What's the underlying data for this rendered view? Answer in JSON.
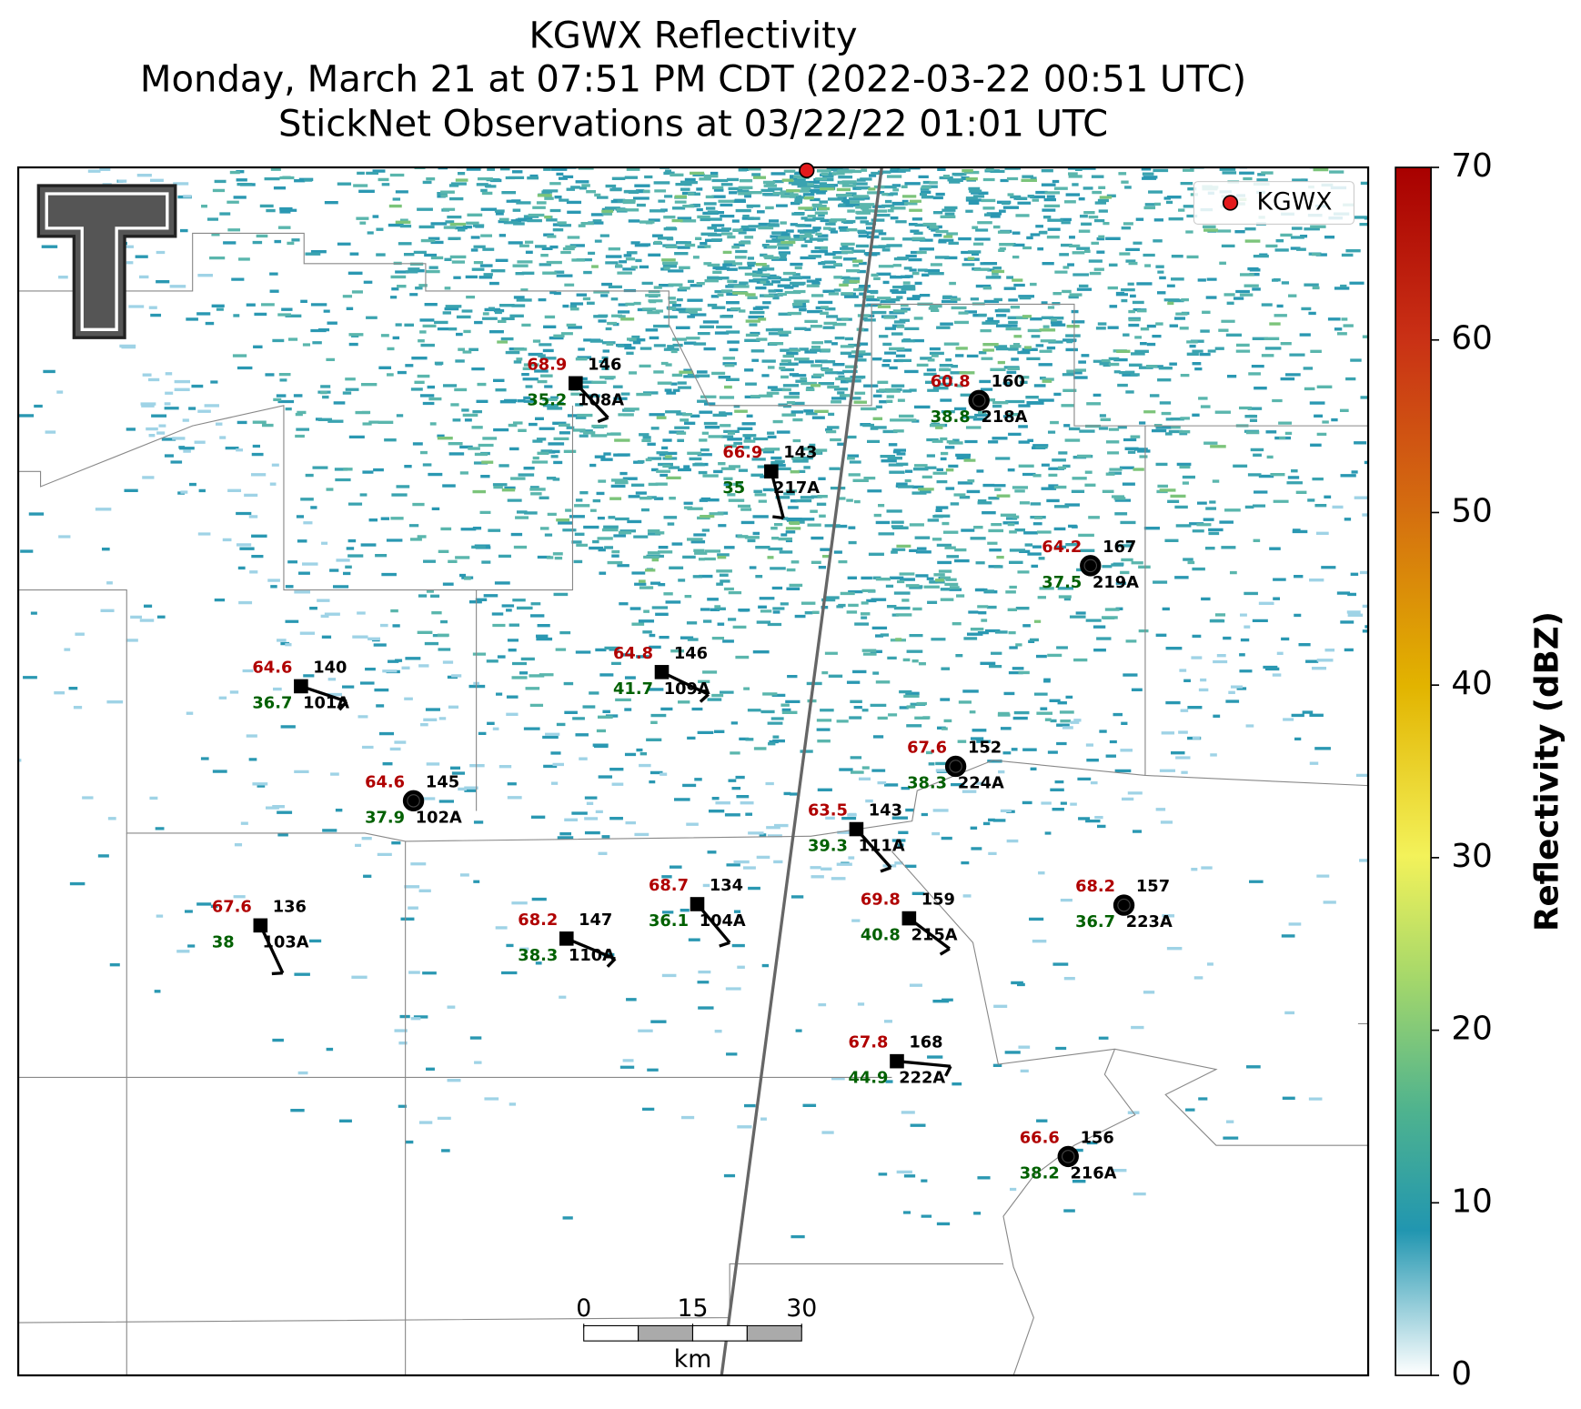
{
  "title": [
    "KGWX Reflectivity",
    "Monday, March 21 at 07:51 PM CDT (2022-03-22 00:51 UTC)",
    "StickNet Observations at 03/22/22 01:01 UTC"
  ],
  "legend": {
    "label": "KGWX"
  },
  "colorbar": {
    "label": "Reflectivity (dBZ)",
    "ylim": [
      0,
      70
    ],
    "yticks": [
      0,
      10,
      20,
      30,
      40,
      50,
      60,
      70
    ]
  },
  "scale_bar": {
    "ticks": [
      0,
      15,
      30
    ],
    "unit": "km"
  },
  "stations": [
    {
      "id": "108A",
      "temp": 68.9,
      "dewpoint": 35.2,
      "number": 146
    },
    {
      "id": "217A",
      "temp": 66.9,
      "dewpoint": 35.0,
      "number": 143
    },
    {
      "id": "218A",
      "temp": 60.8,
      "dewpoint": 38.8,
      "number": 160
    },
    {
      "id": "219A",
      "temp": 64.2,
      "dewpoint": 37.5,
      "number": 167
    },
    {
      "id": "109A",
      "temp": 64.8,
      "dewpoint": 41.7,
      "number": 146
    },
    {
      "id": "101A",
      "temp": 64.6,
      "dewpoint": 36.7,
      "number": 140
    },
    {
      "id": "224A",
      "temp": 67.6,
      "dewpoint": 38.3,
      "number": 152
    },
    {
      "id": "102A",
      "temp": 64.6,
      "dewpoint": 37.9,
      "number": 145
    },
    {
      "id": "111A",
      "temp": 63.5,
      "dewpoint": 39.3,
      "number": 143
    },
    {
      "id": "104A",
      "temp": 68.7,
      "dewpoint": 36.1,
      "number": 134
    },
    {
      "id": "223A",
      "temp": 68.2,
      "dewpoint": 36.7,
      "number": 157
    },
    {
      "id": "103A",
      "temp": 67.6,
      "dewpoint": 38.0,
      "number": 136
    },
    {
      "id": "110A",
      "temp": 68.2,
      "dewpoint": 38.3,
      "number": 147
    },
    {
      "id": "215A",
      "temp": 69.8,
      "dewpoint": 40.8,
      "number": 159
    },
    {
      "id": "222A",
      "temp": 67.8,
      "dewpoint": 44.9,
      "number": 168
    },
    {
      "id": "216A",
      "temp": 66.6,
      "dewpoint": 38.2,
      "number": 156
    }
  ]
}
